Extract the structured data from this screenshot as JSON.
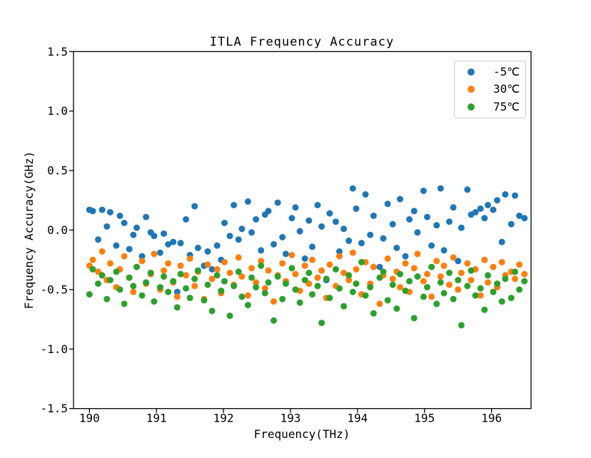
{
  "colors": {
    "background": "#ffffff",
    "spine": "#000000",
    "legend_border": "#cccccc",
    "series_blue": "#1f77b4",
    "series_orange": "#ff7f0e",
    "series_green": "#2ca02c"
  },
  "chart_data": {
    "type": "scatter",
    "title": "ITLA Frequency Accuracy",
    "xlabel": "Frequency(THz)",
    "ylabel": "Frequency Accuracy(GHz)",
    "xlim": [
      189.7625,
      196.5895
    ],
    "ylim": [
      -1.5,
      1.5
    ],
    "xticks": [
      190,
      191,
      192,
      193,
      194,
      195,
      196
    ],
    "xtick_labels": [
      "190",
      "191",
      "192",
      "193",
      "194",
      "195",
      "196"
    ],
    "yticks": [
      1.5,
      1.0,
      0.5,
      0.0,
      -0.5,
      -1.0,
      -1.5
    ],
    "ytick_labels": [
      "1.5",
      "1.0",
      "0.5",
      "0.0",
      "-0.5",
      "-1.0",
      "-1.5"
    ],
    "grid": false,
    "legend_position": "upper right",
    "marker_size_px": 9,
    "x": [
      190.0,
      190.05,
      190.13,
      190.19,
      190.26,
      190.31,
      190.4,
      190.455,
      190.52,
      190.595,
      190.655,
      190.705,
      190.785,
      190.845,
      190.915,
      190.965,
      191.055,
      191.11,
      191.175,
      191.25,
      191.31,
      191.36,
      191.44,
      191.5,
      191.57,
      191.62,
      191.71,
      191.765,
      191.83,
      191.905,
      191.965,
      192.015,
      192.095,
      192.155,
      192.225,
      192.275,
      192.365,
      192.42,
      192.485,
      192.56,
      192.62,
      192.67,
      192.75,
      192.81,
      192.88,
      192.93,
      193.02,
      193.075,
      193.14,
      193.215,
      193.275,
      193.325,
      193.405,
      193.465,
      193.535,
      193.585,
      193.675,
      193.73,
      193.795,
      193.87,
      193.93,
      193.98,
      194.06,
      194.12,
      194.19,
      194.24,
      194.33,
      194.385,
      194.45,
      194.525,
      194.585,
      194.635,
      194.715,
      194.775,
      194.845,
      194.895,
      194.985,
      195.04,
      195.105,
      195.18,
      195.24,
      195.29,
      195.37,
      195.43,
      195.5,
      195.55,
      195.64,
      195.695,
      195.76,
      195.835,
      195.895,
      195.945,
      196.025,
      196.085,
      196.155,
      196.205,
      196.295,
      196.35,
      196.415,
      196.49
    ],
    "series": [
      {
        "name": "-5℃",
        "color": "#1f77b4",
        "values": [
          0.17,
          0.16,
          -0.08,
          0.17,
          0.03,
          0.15,
          -0.13,
          0.12,
          0.06,
          -0.16,
          -0.04,
          0.02,
          -0.22,
          0.11,
          -0.02,
          -0.05,
          -0.19,
          -0.03,
          -0.12,
          -0.1,
          -0.52,
          -0.11,
          0.09,
          -0.21,
          0.2,
          -0.15,
          -0.3,
          -0.18,
          -0.33,
          -0.13,
          -0.25,
          0.06,
          -0.05,
          0.21,
          -0.08,
          0.01,
          0.24,
          -0.02,
          0.09,
          -0.17,
          0.13,
          0.16,
          -0.12,
          0.23,
          -0.06,
          -0.2,
          0.1,
          0.19,
          -0.01,
          -0.24,
          0.08,
          -0.14,
          0.21,
          0.03,
          -0.42,
          0.14,
          0.07,
          -0.18,
          0.01,
          -0.09,
          0.35,
          0.18,
          -0.11,
          0.3,
          -0.04,
          0.12,
          -0.31,
          -0.07,
          0.22,
          0.05,
          -0.15,
          0.26,
          -0.22,
          0.09,
          0.16,
          -0.02,
          0.33,
          0.11,
          -0.13,
          0.04,
          0.35,
          -0.17,
          0.07,
          0.19,
          -0.26,
          0.02,
          0.34,
          0.13,
          0.15,
          0.18,
          0.1,
          0.21,
          0.17,
          0.25,
          -0.1,
          0.3,
          0.05,
          0.29,
          0.12,
          0.1
        ]
      },
      {
        "name": "30℃",
        "color": "#ff7f0e",
        "values": [
          -0.3,
          -0.25,
          -0.35,
          -0.18,
          -0.42,
          -0.28,
          -0.48,
          -0.33,
          -0.22,
          -0.4,
          -0.52,
          -0.31,
          -0.26,
          -0.45,
          -0.37,
          -0.2,
          -0.5,
          -0.34,
          -0.28,
          -0.44,
          -0.56,
          -0.3,
          -0.38,
          -0.24,
          -0.47,
          -0.35,
          -0.58,
          -0.29,
          -0.41,
          -0.33,
          -0.53,
          -0.27,
          -0.36,
          -0.46,
          -0.23,
          -0.39,
          -0.55,
          -0.32,
          -0.44,
          -0.26,
          -0.49,
          -0.34,
          -0.6,
          -0.38,
          -0.28,
          -0.43,
          -0.21,
          -0.37,
          -0.51,
          -0.3,
          -0.45,
          -0.25,
          -0.4,
          -0.34,
          -0.57,
          -0.29,
          -0.47,
          -0.22,
          -0.36,
          -0.42,
          -0.19,
          -0.33,
          -0.54,
          -0.27,
          -0.45,
          -0.31,
          -0.62,
          -0.38,
          -0.24,
          -0.41,
          -0.35,
          -0.48,
          -0.28,
          -0.52,
          -0.32,
          -0.2,
          -0.43,
          -0.37,
          -0.56,
          -0.26,
          -0.39,
          -0.3,
          -0.46,
          -0.23,
          -0.5,
          -0.36,
          -0.28,
          -0.42,
          -0.33,
          -0.55,
          -0.25,
          -0.44,
          -0.31,
          -0.48,
          -0.27,
          -0.38,
          -0.35,
          -0.41,
          -0.29,
          -0.37
        ]
      },
      {
        "name": "75℃",
        "color": "#2ca02c",
        "values": [
          -0.54,
          -0.33,
          -0.45,
          -0.38,
          -0.58,
          -0.42,
          -0.35,
          -0.5,
          -0.62,
          -0.4,
          -0.47,
          -0.31,
          -0.55,
          -0.44,
          -0.36,
          -0.6,
          -0.48,
          -0.39,
          -0.52,
          -0.43,
          -0.65,
          -0.37,
          -0.49,
          -0.57,
          -0.41,
          -0.34,
          -0.59,
          -0.46,
          -0.68,
          -0.38,
          -0.51,
          -0.43,
          -0.72,
          -0.47,
          -0.35,
          -0.56,
          -0.63,
          -0.4,
          -0.48,
          -0.3,
          -0.53,
          -0.44,
          -0.76,
          -0.39,
          -0.58,
          -0.45,
          -0.32,
          -0.5,
          -0.61,
          -0.42,
          -0.36,
          -0.54,
          -0.47,
          -0.78,
          -0.41,
          -0.57,
          -0.33,
          -0.49,
          -0.64,
          -0.38,
          -0.52,
          -0.45,
          -0.27,
          -0.55,
          -0.48,
          -0.7,
          -0.4,
          -0.35,
          -0.59,
          -0.46,
          -0.66,
          -0.37,
          -0.51,
          -0.43,
          -0.74,
          -0.39,
          -0.56,
          -0.48,
          -0.31,
          -0.62,
          -0.44,
          -0.53,
          -0.36,
          -0.58,
          -0.42,
          -0.8,
          -0.47,
          -0.34,
          -0.55,
          -0.49,
          -0.67,
          -0.38,
          -0.52,
          -0.45,
          -0.6,
          -0.41,
          -0.57,
          -0.35,
          -0.5,
          -0.43
        ]
      }
    ]
  },
  "legend": {
    "items": [
      {
        "label": "-5℃"
      },
      {
        "label": "30℃"
      },
      {
        "label": "75℃"
      }
    ]
  }
}
